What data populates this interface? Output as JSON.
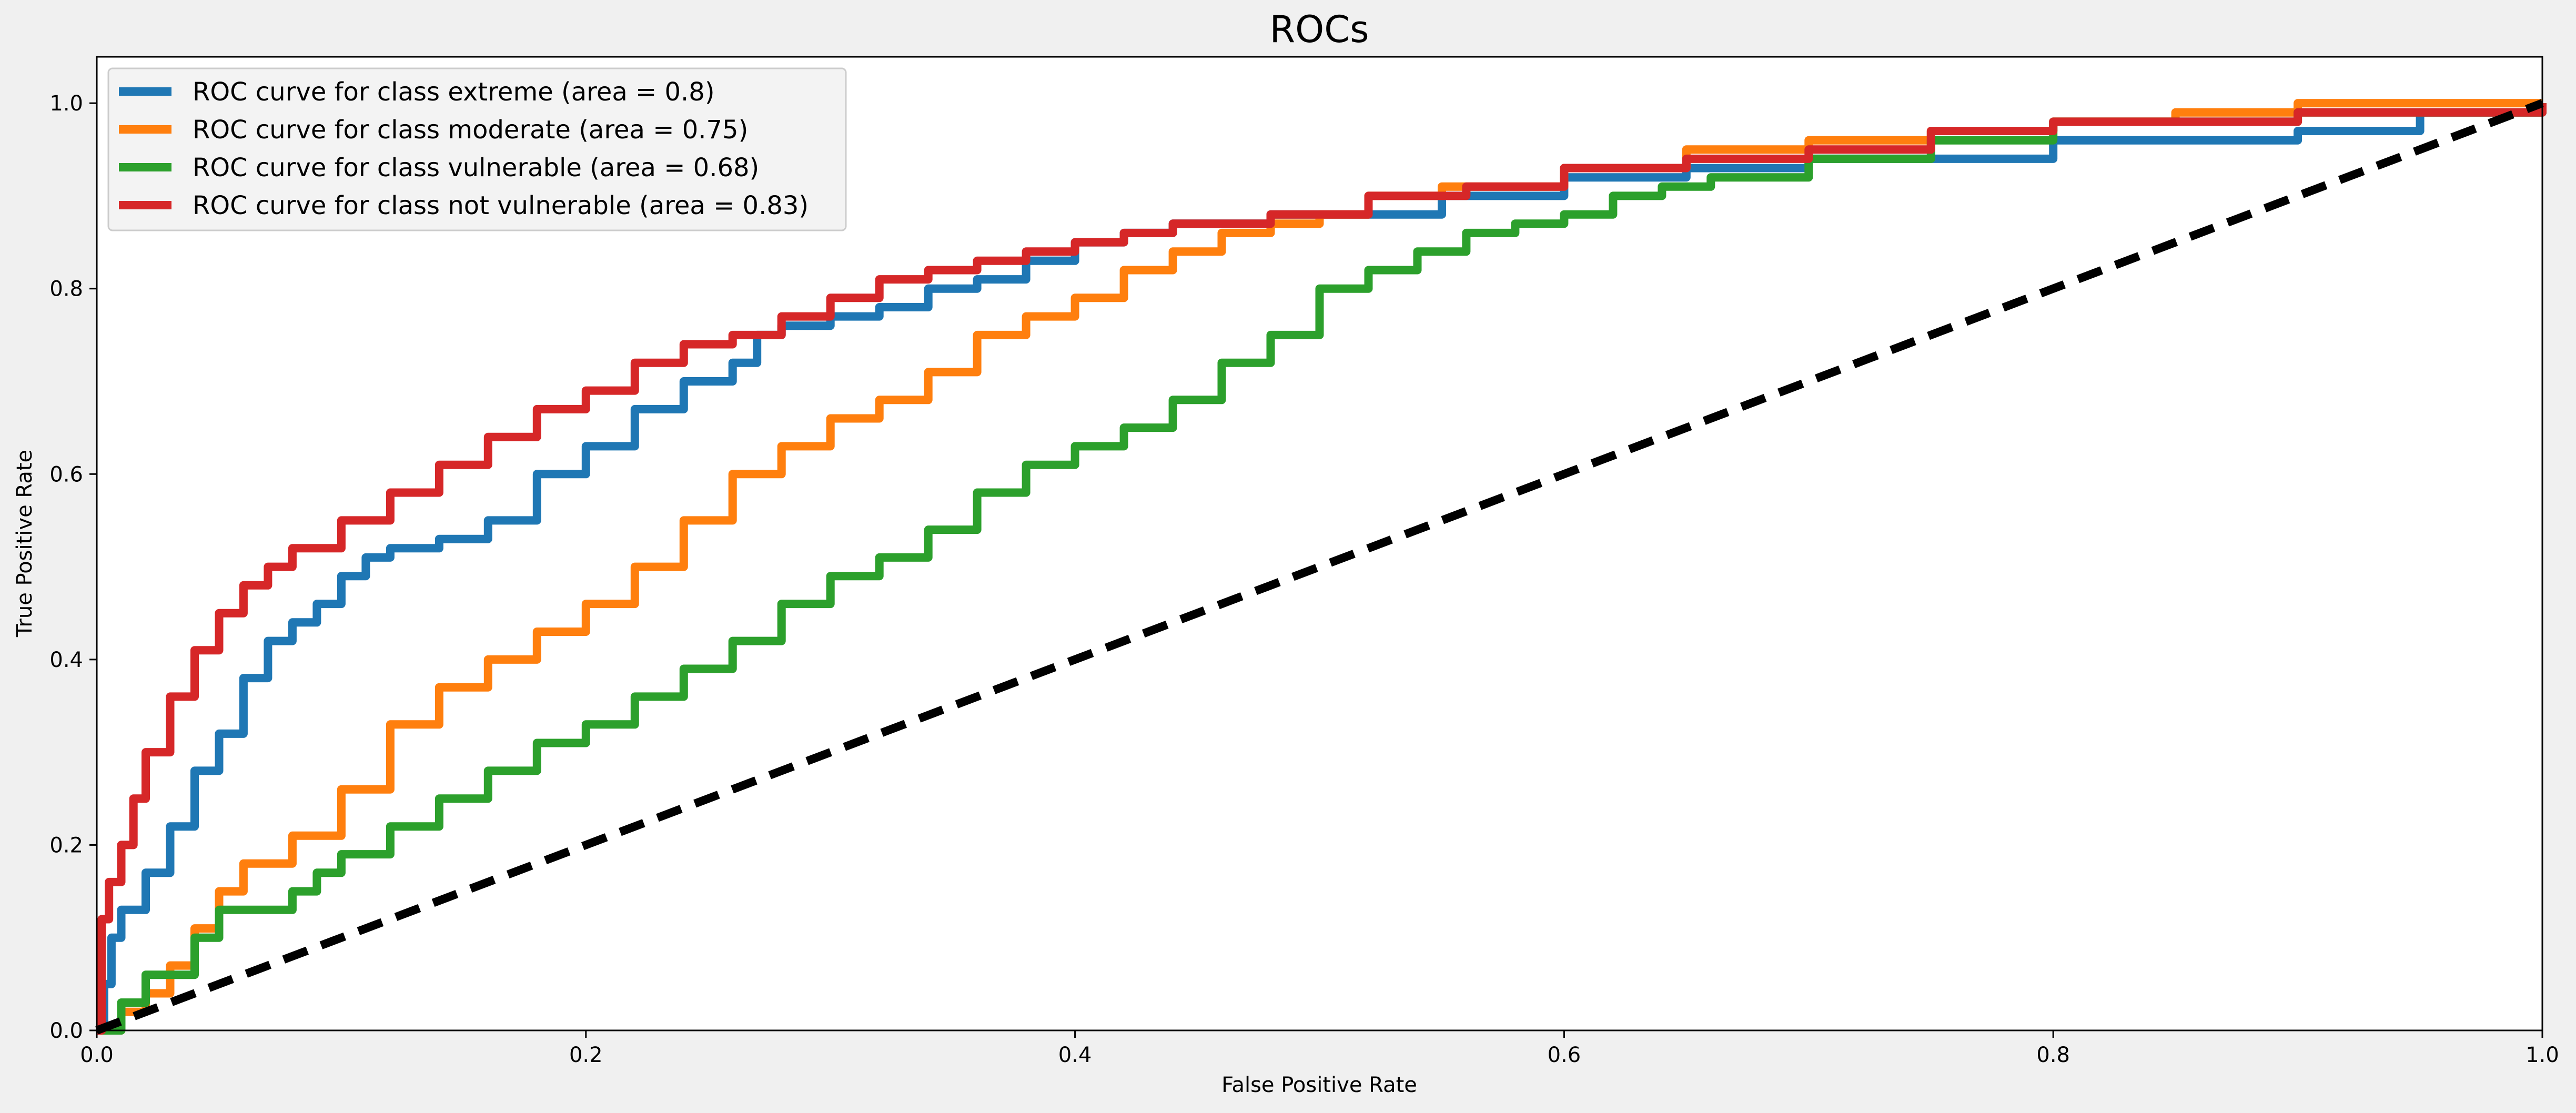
{
  "chart_data": {
    "type": "line",
    "title": "ROCs",
    "xlabel": "False Positive Rate",
    "ylabel": "True Positive Rate",
    "xlim": [
      0.0,
      1.0
    ],
    "ylim": [
      0.0,
      1.05
    ],
    "xticks": [
      "0.0",
      "0.2",
      "0.4",
      "0.6",
      "0.8",
      "1.0"
    ],
    "yticks": [
      "0.0",
      "0.2",
      "0.4",
      "0.6",
      "0.8",
      "1.0"
    ],
    "grid": false,
    "legend_position": "upper-left",
    "series": [
      {
        "name": "ROC curve for class extreme (area = 0.8)",
        "color": "#1f77b4",
        "x": [
          0,
          0.003,
          0.006,
          0.01,
          0.02,
          0.03,
          0.04,
          0.05,
          0.06,
          0.07,
          0.08,
          0.09,
          0.1,
          0.11,
          0.12,
          0.14,
          0.16,
          0.18,
          0.2,
          0.22,
          0.24,
          0.26,
          0.27,
          0.28,
          0.3,
          0.32,
          0.34,
          0.36,
          0.38,
          0.4,
          0.42,
          0.44,
          0.48,
          0.55,
          0.6,
          0.65,
          0.7,
          0.8,
          0.9,
          0.95,
          1.0
        ],
        "y": [
          0,
          0.05,
          0.1,
          0.13,
          0.17,
          0.22,
          0.28,
          0.32,
          0.38,
          0.42,
          0.44,
          0.46,
          0.49,
          0.51,
          0.52,
          0.53,
          0.55,
          0.6,
          0.63,
          0.67,
          0.7,
          0.72,
          0.75,
          0.76,
          0.77,
          0.78,
          0.8,
          0.81,
          0.83,
          0.85,
          0.86,
          0.87,
          0.88,
          0.9,
          0.92,
          0.93,
          0.94,
          0.96,
          0.97,
          0.99,
          1.0
        ]
      },
      {
        "name": "ROC curve for class moderate (area = 0.75)",
        "color": "#ff7f0e",
        "x": [
          0,
          0.01,
          0.02,
          0.03,
          0.04,
          0.05,
          0.06,
          0.08,
          0.1,
          0.12,
          0.14,
          0.16,
          0.18,
          0.2,
          0.22,
          0.24,
          0.26,
          0.28,
          0.3,
          0.32,
          0.34,
          0.36,
          0.38,
          0.4,
          0.42,
          0.44,
          0.46,
          0.48,
          0.5,
          0.52,
          0.55,
          0.6,
          0.65,
          0.7,
          0.75,
          0.8,
          0.85,
          0.9,
          1.0
        ],
        "y": [
          0,
          0.02,
          0.04,
          0.07,
          0.11,
          0.15,
          0.18,
          0.21,
          0.26,
          0.33,
          0.37,
          0.4,
          0.43,
          0.46,
          0.5,
          0.55,
          0.6,
          0.63,
          0.66,
          0.68,
          0.71,
          0.75,
          0.77,
          0.79,
          0.82,
          0.84,
          0.86,
          0.87,
          0.88,
          0.9,
          0.91,
          0.93,
          0.95,
          0.96,
          0.97,
          0.98,
          0.99,
          1.0,
          1.0
        ]
      },
      {
        "name": "ROC curve for class vulnerable (area = 0.68)",
        "color": "#2ca02c",
        "x": [
          0,
          0.01,
          0.02,
          0.04,
          0.05,
          0.06,
          0.08,
          0.09,
          0.1,
          0.12,
          0.14,
          0.16,
          0.18,
          0.2,
          0.22,
          0.24,
          0.26,
          0.28,
          0.3,
          0.32,
          0.34,
          0.36,
          0.38,
          0.4,
          0.42,
          0.44,
          0.46,
          0.48,
          0.5,
          0.52,
          0.54,
          0.56,
          0.58,
          0.6,
          0.62,
          0.64,
          0.66,
          0.7,
          0.75,
          0.8,
          0.9,
          1.0
        ],
        "y": [
          0,
          0.03,
          0.06,
          0.1,
          0.13,
          0.13,
          0.15,
          0.17,
          0.19,
          0.22,
          0.25,
          0.28,
          0.31,
          0.33,
          0.36,
          0.39,
          0.42,
          0.46,
          0.49,
          0.51,
          0.54,
          0.58,
          0.61,
          0.63,
          0.65,
          0.68,
          0.72,
          0.75,
          0.8,
          0.82,
          0.84,
          0.86,
          0.87,
          0.88,
          0.9,
          0.91,
          0.92,
          0.94,
          0.96,
          0.98,
          0.99,
          1.0
        ]
      },
      {
        "name": "ROC curve for class not vulnerable (area = 0.83)",
        "color": "#d62728",
        "x": [
          0,
          0.002,
          0.005,
          0.01,
          0.015,
          0.02,
          0.03,
          0.04,
          0.05,
          0.06,
          0.07,
          0.08,
          0.1,
          0.12,
          0.14,
          0.16,
          0.18,
          0.2,
          0.22,
          0.24,
          0.26,
          0.28,
          0.3,
          0.32,
          0.34,
          0.36,
          0.38,
          0.4,
          0.42,
          0.44,
          0.48,
          0.52,
          0.56,
          0.6,
          0.65,
          0.7,
          0.75,
          0.8,
          0.9,
          1.0
        ],
        "y": [
          0,
          0.12,
          0.16,
          0.2,
          0.25,
          0.3,
          0.36,
          0.41,
          0.45,
          0.48,
          0.5,
          0.52,
          0.55,
          0.58,
          0.61,
          0.64,
          0.67,
          0.69,
          0.72,
          0.74,
          0.75,
          0.77,
          0.79,
          0.81,
          0.82,
          0.83,
          0.84,
          0.85,
          0.86,
          0.87,
          0.88,
          0.9,
          0.91,
          0.93,
          0.94,
          0.95,
          0.97,
          0.98,
          0.99,
          1.0
        ]
      },
      {
        "name": "",
        "color": "#000000",
        "dashed": true,
        "x": [
          0,
          1
        ],
        "y": [
          0,
          1
        ]
      }
    ]
  }
}
